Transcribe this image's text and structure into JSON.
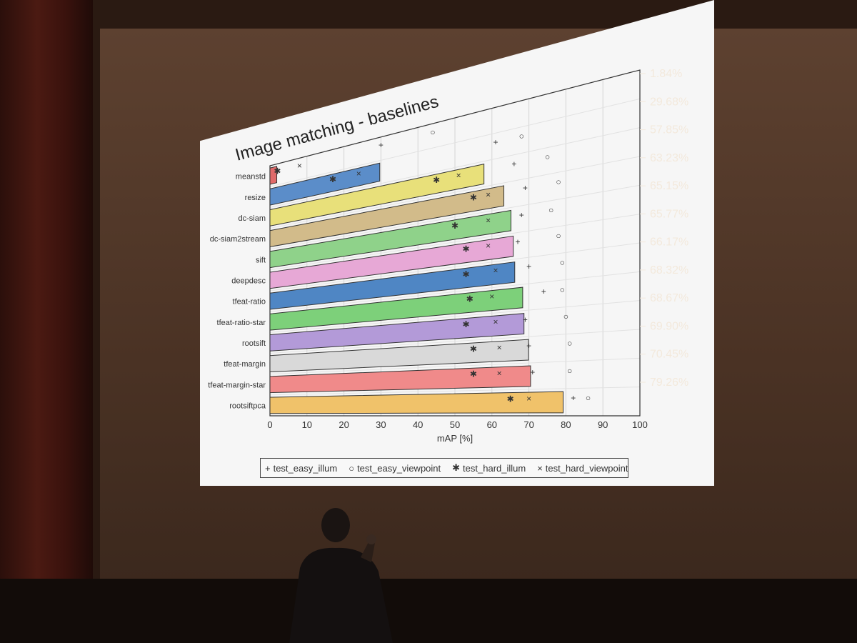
{
  "chart_data": {
    "type": "bar",
    "title": "Image matching - baselines",
    "xlabel": "mAP [%]",
    "xlim": [
      0,
      100
    ],
    "xticks": [
      "0",
      "10",
      "20",
      "30",
      "40",
      "50",
      "60",
      "70",
      "80",
      "90",
      "100"
    ],
    "categories": [
      "meanstd",
      "resize",
      "dc-siam",
      "dc-siam2stream",
      "sift",
      "deepdesc",
      "tfeat-ratio",
      "tfeat-ratio-star",
      "rootsift",
      "tfeat-margin",
      "tfeat-margin-star",
      "rootsiftpca"
    ],
    "right_labels": [
      "1.84%",
      "29.68%",
      "57.85%",
      "63.23%",
      "65.15%",
      "65.77%",
      "66.17%",
      "68.32%",
      "68.67%",
      "69.90%",
      "70.45%",
      "79.26%"
    ],
    "values": [
      1.84,
      29.68,
      57.85,
      63.23,
      65.15,
      65.77,
      66.17,
      68.32,
      68.67,
      69.9,
      70.45,
      79.26
    ],
    "bar_colors": [
      "#e06a6a",
      "#5b8dc9",
      "#e8e07a",
      "#d2bb8a",
      "#8fd28a",
      "#e7a8d6",
      "#4f86c4",
      "#7dd07a",
      "#b39ad8",
      "#d9d9d9",
      "#f08a8a",
      "#f0c26a"
    ],
    "series": [
      {
        "name": "test_easy_illum",
        "marker": "+",
        "values": [
          30,
          61,
          66,
          69,
          68,
          67,
          70,
          74,
          69,
          70,
          71,
          82
        ]
      },
      {
        "name": "test_easy_viewpoint",
        "marker": "o",
        "values": [
          44,
          68,
          75,
          78,
          76,
          78,
          79,
          79,
          80,
          81,
          81,
          86
        ]
      },
      {
        "name": "test_hard_illum",
        "marker": "*",
        "values": [
          2,
          17,
          45,
          55,
          50,
          53,
          53,
          54,
          53,
          55,
          55,
          65
        ]
      },
      {
        "name": "test_hard_viewpoint",
        "marker": "x",
        "values": [
          8,
          24,
          51,
          59,
          59,
          59,
          61,
          60,
          61,
          62,
          62,
          70
        ]
      }
    ],
    "legend": {
      "position": "bottom",
      "items": [
        {
          "symbol": "+",
          "label": "test_easy_illum"
        },
        {
          "symbol": "○",
          "label": "test_easy_viewpoint"
        },
        {
          "symbol": "✱",
          "label": "test_hard_illum"
        },
        {
          "symbol": "×",
          "label": "test_hard_viewpoint"
        }
      ]
    },
    "grid": true
  },
  "colors": {
    "slide_bg": "#f6f6f6",
    "room_bg": "#2a1a12",
    "right_label_color": "#f3e9dc"
  }
}
